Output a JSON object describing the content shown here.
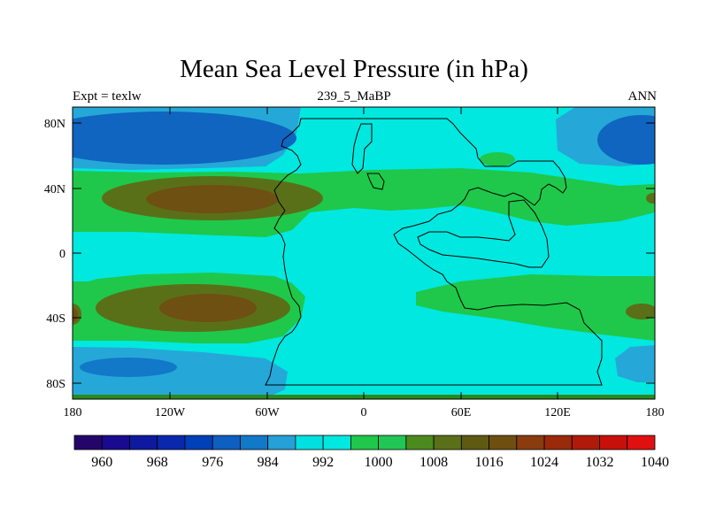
{
  "map": {
    "title": "Mean Sea Level Pressure (in hPa)",
    "left_label": "Expt = texlw",
    "center_label": "239_5_MaBP",
    "right_label": "ANN",
    "variable": "Mean Sea Level Pressure",
    "units": "hPa",
    "lat_ticks": [
      "80N",
      "40N",
      "0",
      "40S",
      "80S"
    ],
    "lon_ticks": [
      "180",
      "120W",
      "60W",
      "0",
      "60E",
      "120E",
      "180"
    ]
  },
  "colorbar": {
    "colors": [
      "#24066b",
      "#1a0a8f",
      "#0d1aa0",
      "#0a28ae",
      "#0040b8",
      "#0d5fc0",
      "#1278c8",
      "#25a0d8",
      "#00e0e0",
      "#00e8e0",
      "#1fc84a",
      "#21c655",
      "#4c8a1e",
      "#5a7018",
      "#5e5a12",
      "#6e4f10",
      "#8a3c0e",
      "#9a2a0a",
      "#b01a0a",
      "#c8100a",
      "#e01010"
    ],
    "labels": [
      "960",
      "968",
      "976",
      "984",
      "992",
      "1000",
      "1008",
      "1016",
      "1024",
      "1032",
      "1040"
    ]
  }
}
